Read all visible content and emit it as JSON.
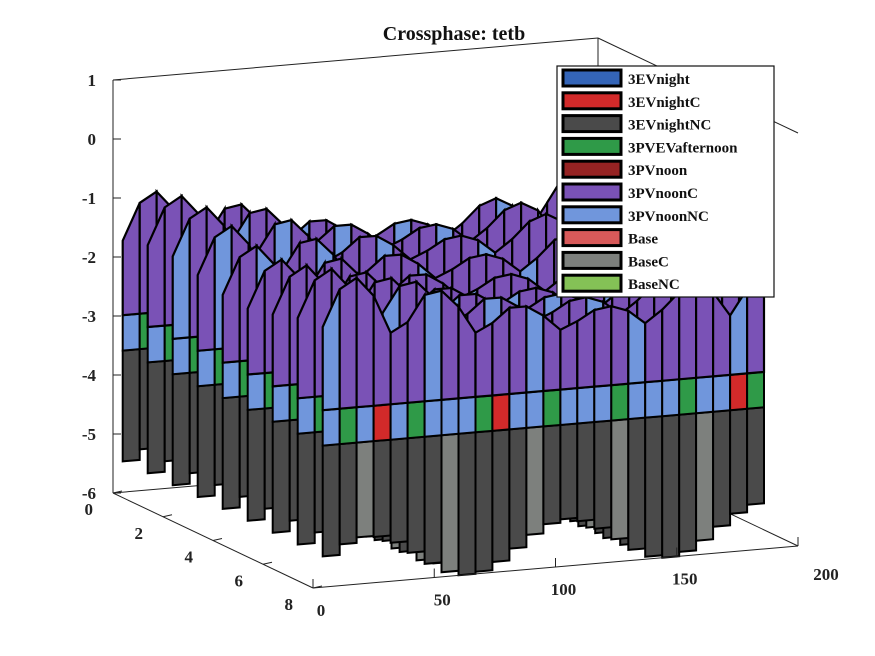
{
  "chart_data": {
    "type": "surface3d",
    "title": "Crossphase: tetb",
    "xlabel": "",
    "ylabel": "",
    "zlabel": "",
    "x_axis": {
      "range": [
        0,
        200
      ],
      "ticks": [
        "0",
        "50",
        "100",
        "150",
        "200"
      ]
    },
    "y_axis": {
      "range": [
        0,
        8
      ],
      "ticks": [
        "0",
        "2",
        "4",
        "6",
        "8"
      ]
    },
    "z_axis": {
      "range": [
        -6,
        1
      ],
      "ticks": [
        "1",
        "0",
        "-1",
        "-2",
        "-3",
        "-4",
        "-5",
        "-6"
      ]
    },
    "legend_position": "top-right",
    "series": [
      {
        "name": "3EVnight",
        "color": "#3465b8"
      },
      {
        "name": "3EVnightC",
        "color": "#d22a2a"
      },
      {
        "name": "3EVnightNC",
        "color": "#4a4a4a"
      },
      {
        "name": "3PVEVafternoon",
        "color": "#2f9a48"
      },
      {
        "name": "3PVnoon",
        "color": "#962323"
      },
      {
        "name": "3PVnoonC",
        "color": "#7a52b6"
      },
      {
        "name": "3PVnoonNC",
        "color": "#7096dc"
      },
      {
        "name": "Base",
        "color": "#d85a5a"
      },
      {
        "name": "BaseC",
        "color": "#7d807d"
      },
      {
        "name": "BaseNC",
        "color": "#84c156"
      }
    ]
  }
}
